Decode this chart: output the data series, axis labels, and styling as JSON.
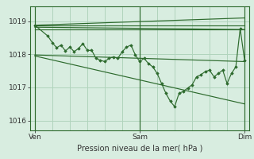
{
  "title": "",
  "xlabel": "Pression niveau de la mer( hPa )",
  "ylabel": "",
  "bg_color": "#d8ede0",
  "line_color": "#2d6a2d",
  "grid_color": "#b0d4bc",
  "xtick_labels": [
    "Ven",
    "Sam",
    "Dim"
  ],
  "xtick_positions": [
    0,
    48,
    96
  ],
  "ytick_labels": [
    "1016",
    "1017",
    "1018",
    "1019"
  ],
  "ytick_values": [
    1016,
    1017,
    1018,
    1019
  ],
  "ylim": [
    1015.7,
    1019.45
  ],
  "xlim": [
    -2,
    98
  ],
  "straight_lines": [
    {
      "x0": 0,
      "y0": 1018.88,
      "x1": 96,
      "y1": 1018.88
    },
    {
      "x0": 0,
      "y0": 1018.88,
      "x1": 96,
      "y1": 1019.1
    },
    {
      "x0": 0,
      "y0": 1018.82,
      "x1": 96,
      "y1": 1018.75
    },
    {
      "x0": 0,
      "y0": 1018.75,
      "x1": 96,
      "y1": 1018.75
    },
    {
      "x0": 0,
      "y0": 1017.98,
      "x1": 96,
      "y1": 1017.78
    },
    {
      "x0": 0,
      "y0": 1017.95,
      "x1": 96,
      "y1": 1016.5
    }
  ],
  "detail_line": {
    "x": [
      0,
      6,
      8,
      10,
      12,
      14,
      16,
      18,
      20,
      22,
      24,
      26,
      28,
      30,
      32,
      34,
      36,
      38,
      40,
      42,
      44,
      46,
      48,
      50,
      52,
      54,
      56,
      58,
      60,
      62,
      64,
      66,
      68,
      70,
      72,
      74,
      76,
      78,
      80,
      82,
      84,
      86,
      88,
      90,
      92,
      94,
      96
    ],
    "y": [
      1018.88,
      1018.55,
      1018.35,
      1018.2,
      1018.28,
      1018.1,
      1018.22,
      1018.08,
      1018.18,
      1018.32,
      1018.12,
      1018.12,
      1017.88,
      1017.82,
      1017.78,
      1017.88,
      1017.92,
      1017.88,
      1018.08,
      1018.22,
      1018.28,
      1017.98,
      1017.78,
      1017.88,
      1017.72,
      1017.62,
      1017.42,
      1017.12,
      1016.82,
      1016.58,
      1016.42,
      1016.82,
      1016.88,
      1016.98,
      1017.08,
      1017.32,
      1017.38,
      1017.48,
      1017.52,
      1017.32,
      1017.42,
      1017.52,
      1017.12,
      1017.42,
      1017.62,
      1018.78,
      1017.82
    ]
  }
}
